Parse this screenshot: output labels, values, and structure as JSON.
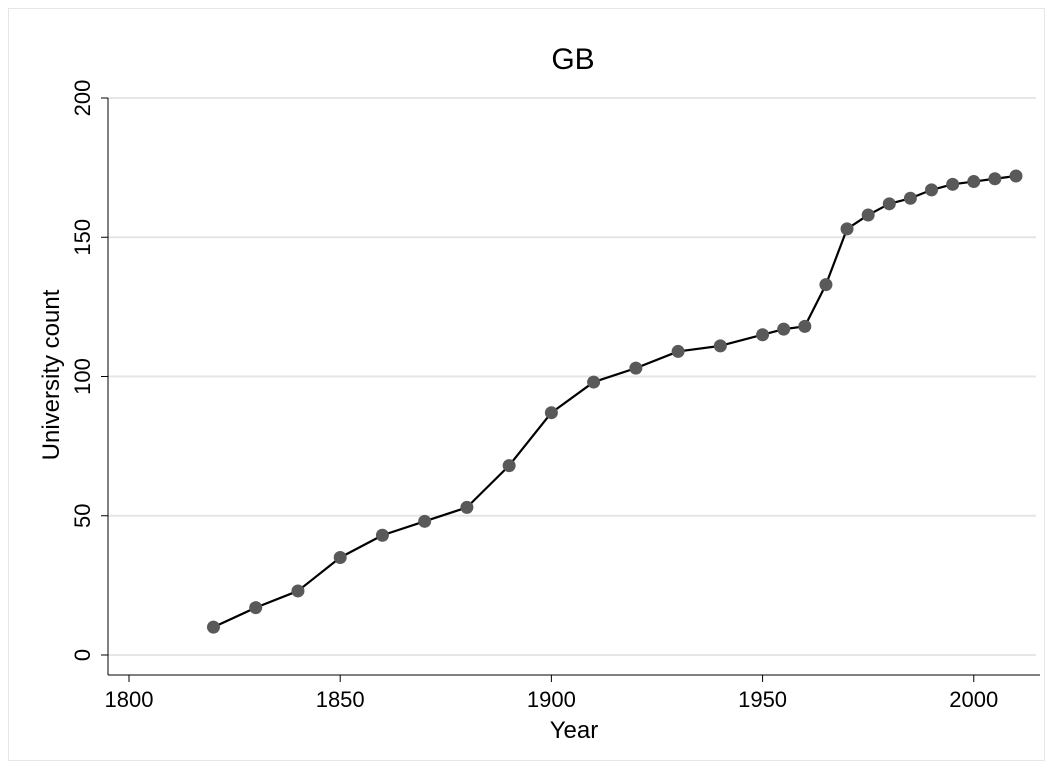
{
  "chart_data": {
    "type": "line",
    "title": "GB",
    "xlabel": "Year",
    "ylabel": "University count",
    "xlim": [
      1800,
      2010
    ],
    "ylim": [
      0,
      200
    ],
    "xticks": [
      1800,
      1850,
      1900,
      1950,
      2000
    ],
    "yticks": [
      0,
      50,
      100,
      150,
      200
    ],
    "grid": true,
    "series": [
      {
        "marker": "circle",
        "line_color": "#000000",
        "marker_color": "#595959",
        "x": [
          1820,
          1830,
          1840,
          1850,
          1860,
          1870,
          1880,
          1890,
          1900,
          1910,
          1920,
          1930,
          1940,
          1950,
          1955,
          1960,
          1965,
          1970,
          1975,
          1980,
          1985,
          1990,
          1995,
          2000,
          2005,
          2010
        ],
        "y": [
          10,
          17,
          23,
          35,
          43,
          48,
          53,
          68,
          87,
          98,
          103,
          109,
          111,
          115,
          117,
          118,
          133,
          153,
          158,
          162,
          164,
          167,
          169,
          170,
          171,
          172
        ]
      }
    ]
  }
}
